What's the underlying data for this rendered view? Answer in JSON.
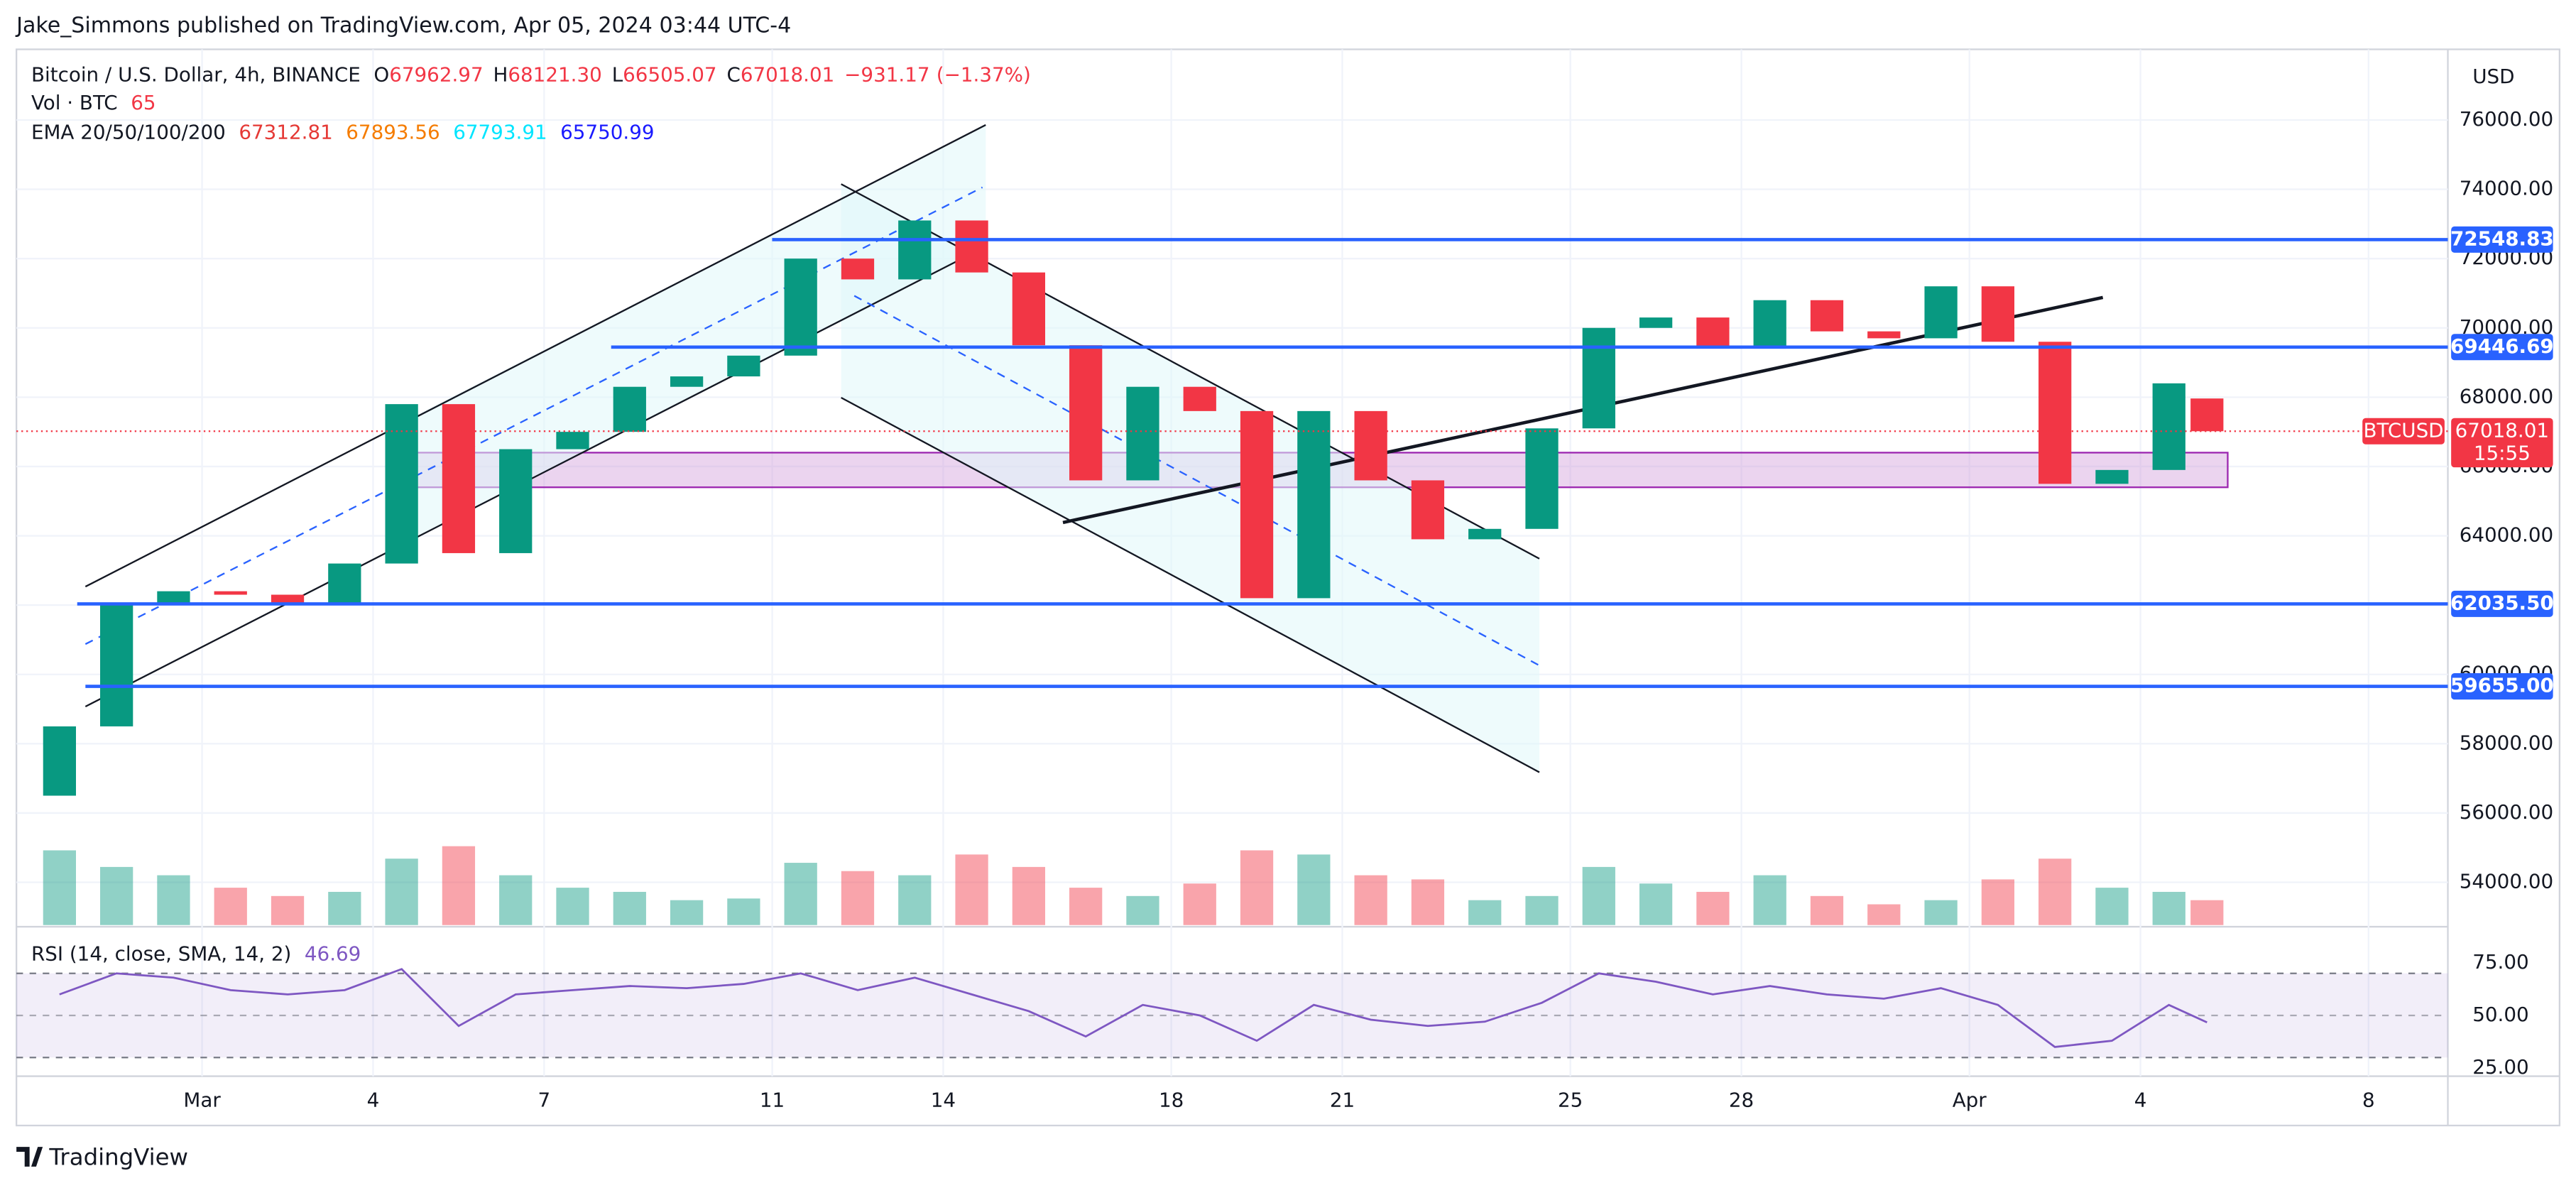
{
  "header": {
    "published": "Jake_Simmons published on TradingView.com, Apr 05, 2024 03:44 UTC-4"
  },
  "chart_data": {
    "type": "candlestick",
    "symbol": "Bitcoin / U.S. Dollar, 4h, BINANCE",
    "ohlc_legend": [
      {
        "key": "O",
        "value": 67962.97,
        "label": "67962.97"
      },
      {
        "key": "H",
        "value": 68121.3,
        "label": "68121.30"
      },
      {
        "key": "L",
        "value": 66505.07,
        "label": "66505.07"
      },
      {
        "key": "C",
        "value": 67018.01,
        "label": "67018.01"
      }
    ],
    "change": {
      "value": -931.17,
      "label": "−931.17"
    },
    "change_pct": {
      "value": -1.37,
      "label": "(−1.37%)"
    },
    "volume_legend": {
      "label": "Vol · BTC",
      "value": 65
    },
    "ema_legend": {
      "label": "EMA 20/50/100/200",
      "values": [
        67312.81,
        67893.56,
        67793.91,
        65750.99
      ],
      "colors": [
        "#e53935",
        "#f57c00",
        "#00e5ff",
        "#1a1aff"
      ]
    },
    "currency": "USD",
    "ticker_badge": "BTCUSD",
    "last_price": 67018.01,
    "countdown": "15:55",
    "x": [
      "2024-02-27T12:00",
      "2024-02-28T12:00",
      "2024-02-29T12:00",
      "2024-03-01T12:00",
      "2024-03-02T12:00",
      "2024-03-03T12:00",
      "2024-03-04T12:00",
      "2024-03-05T12:00",
      "2024-03-06T12:00",
      "2024-03-07T12:00",
      "2024-03-08T12:00",
      "2024-03-09T12:00",
      "2024-03-10T12:00",
      "2024-03-11T12:00",
      "2024-03-12T12:00",
      "2024-03-13T12:00",
      "2024-03-14T12:00",
      "2024-03-15T12:00",
      "2024-03-16T12:00",
      "2024-03-17T12:00",
      "2024-03-18T12:00",
      "2024-03-19T12:00",
      "2024-03-20T12:00",
      "2024-03-21T12:00",
      "2024-03-22T12:00",
      "2024-03-23T12:00",
      "2024-03-24T12:00",
      "2024-03-25T12:00",
      "2024-03-26T12:00",
      "2024-03-27T12:00",
      "2024-03-28T12:00",
      "2024-03-29T12:00",
      "2024-03-30T12:00",
      "2024-03-31T12:00",
      "2024-04-01T12:00",
      "2024-04-02T12:00",
      "2024-04-03T12:00",
      "2024-04-04T12:00",
      "2024-04-05T04:00"
    ],
    "open": [
      56500,
      58500,
      62000,
      62400,
      62300,
      62000,
      63200,
      67800,
      63500,
      66500,
      67000,
      68300,
      68600,
      69200,
      72000,
      71400,
      73100,
      71600,
      69500,
      65600,
      68300,
      67600,
      62200,
      67600,
      65600,
      63900,
      64200,
      67100,
      70000,
      70300,
      69400,
      70800,
      69900,
      69700,
      71200,
      69600,
      65500,
      65900,
      67962.97
    ],
    "close": [
      58500,
      62000,
      62400,
      62300,
      62000,
      63200,
      67800,
      63500,
      66500,
      67000,
      68300,
      68600,
      69200,
      72000,
      71400,
      73100,
      71600,
      69500,
      65600,
      68300,
      67600,
      62200,
      67600,
      65600,
      63900,
      64200,
      67100,
      70000,
      70300,
      69400,
      70800,
      69900,
      69700,
      71200,
      69600,
      65500,
      65900,
      68400,
      67018.01
    ],
    "volume": [
      9000,
      7000,
      6000,
      4500,
      3500,
      4000,
      8000,
      9500,
      6000,
      4500,
      4000,
      3000,
      3200,
      7500,
      6500,
      6000,
      8500,
      7000,
      4500,
      3500,
      5000,
      9000,
      8500,
      6000,
      5500,
      3000,
      3500,
      7000,
      5000,
      4000,
      6000,
      3500,
      2500,
      3000,
      5500,
      8000,
      4500,
      4000,
      3000
    ],
    "up_color": "#089981",
    "down_color": "#f23645",
    "xlim": [
      "2024-02-26T17:51",
      "2024-04-09T09:24"
    ],
    "xticks": [
      {
        "value": "2024-03-01T00:00",
        "label": "Mar"
      },
      {
        "value": "2024-03-04T00:00",
        "label": "4"
      },
      {
        "value": "2024-03-07T00:00",
        "label": "7"
      },
      {
        "value": "2024-03-11T00:00",
        "label": "11"
      },
      {
        "value": "2024-03-14T00:00",
        "label": "14"
      },
      {
        "value": "2024-03-18T00:00",
        "label": "18"
      },
      {
        "value": "2024-03-21T00:00",
        "label": "21"
      },
      {
        "value": "2024-03-25T00:00",
        "label": "25"
      },
      {
        "value": "2024-03-28T00:00",
        "label": "28"
      },
      {
        "value": "2024-04-01T00:00",
        "label": "Apr"
      },
      {
        "value": "2024-04-04T00:00",
        "label": "4"
      },
      {
        "value": "2024-04-08T00:00",
        "label": "8"
      }
    ],
    "ylim": [
      52766,
      78039
    ],
    "yticks": [
      {
        "value": 76000,
        "label": "76000.00"
      },
      {
        "value": 74000,
        "label": "74000.00"
      },
      {
        "value": 72000,
        "label": "72000.00"
      },
      {
        "value": 70000,
        "label": "70000.00"
      },
      {
        "value": 68000,
        "label": "68000.00"
      },
      {
        "value": 66000,
        "label": "66000.00"
      },
      {
        "value": 64000,
        "label": "64000.00"
      },
      {
        "value": 62000,
        "label": "62000.00"
      },
      {
        "value": 60000,
        "label": "60000.00"
      },
      {
        "value": 58000,
        "label": "58000.00"
      },
      {
        "value": 56000,
        "label": "56000.00"
      },
      {
        "value": 54000,
        "label": "54000.00"
      }
    ],
    "grid": true,
    "levels": [
      72548.83,
      69446.69,
      {
        "value": 62035.5,
        "label": "62035.50"
      },
      {
        "value": 59655,
        "label": "59655.00"
      }
    ],
    "level_color": "#2962ff",
    "zone": [
      65400,
      66400
    ],
    "zone_color": "#ce93d8",
    "rsi": {
      "title": "RSI (14, close, SMA, 14, 2)",
      "value": 46.69,
      "values": [
        60,
        70,
        68,
        62,
        60,
        62,
        72,
        45,
        60,
        62,
        64,
        63,
        65,
        70,
        62,
        68,
        60,
        52,
        40,
        55,
        50,
        38,
        55,
        48,
        45,
        47,
        56,
        70,
        66,
        60,
        64,
        60,
        58,
        63,
        55,
        35,
        38,
        55,
        46.69
      ],
      "ylim": [
        21.1,
        91.4
      ],
      "yticks": [
        {
          "value": 75,
          "label": "75.00"
        },
        {
          "value": 50,
          "label": "50.00"
        },
        {
          "value": 25,
          "label": "25.00"
        }
      ],
      "bands": [
        30,
        70
      ],
      "color": "#7e57c2"
    }
  },
  "footer": {
    "brand": "TradingView"
  }
}
